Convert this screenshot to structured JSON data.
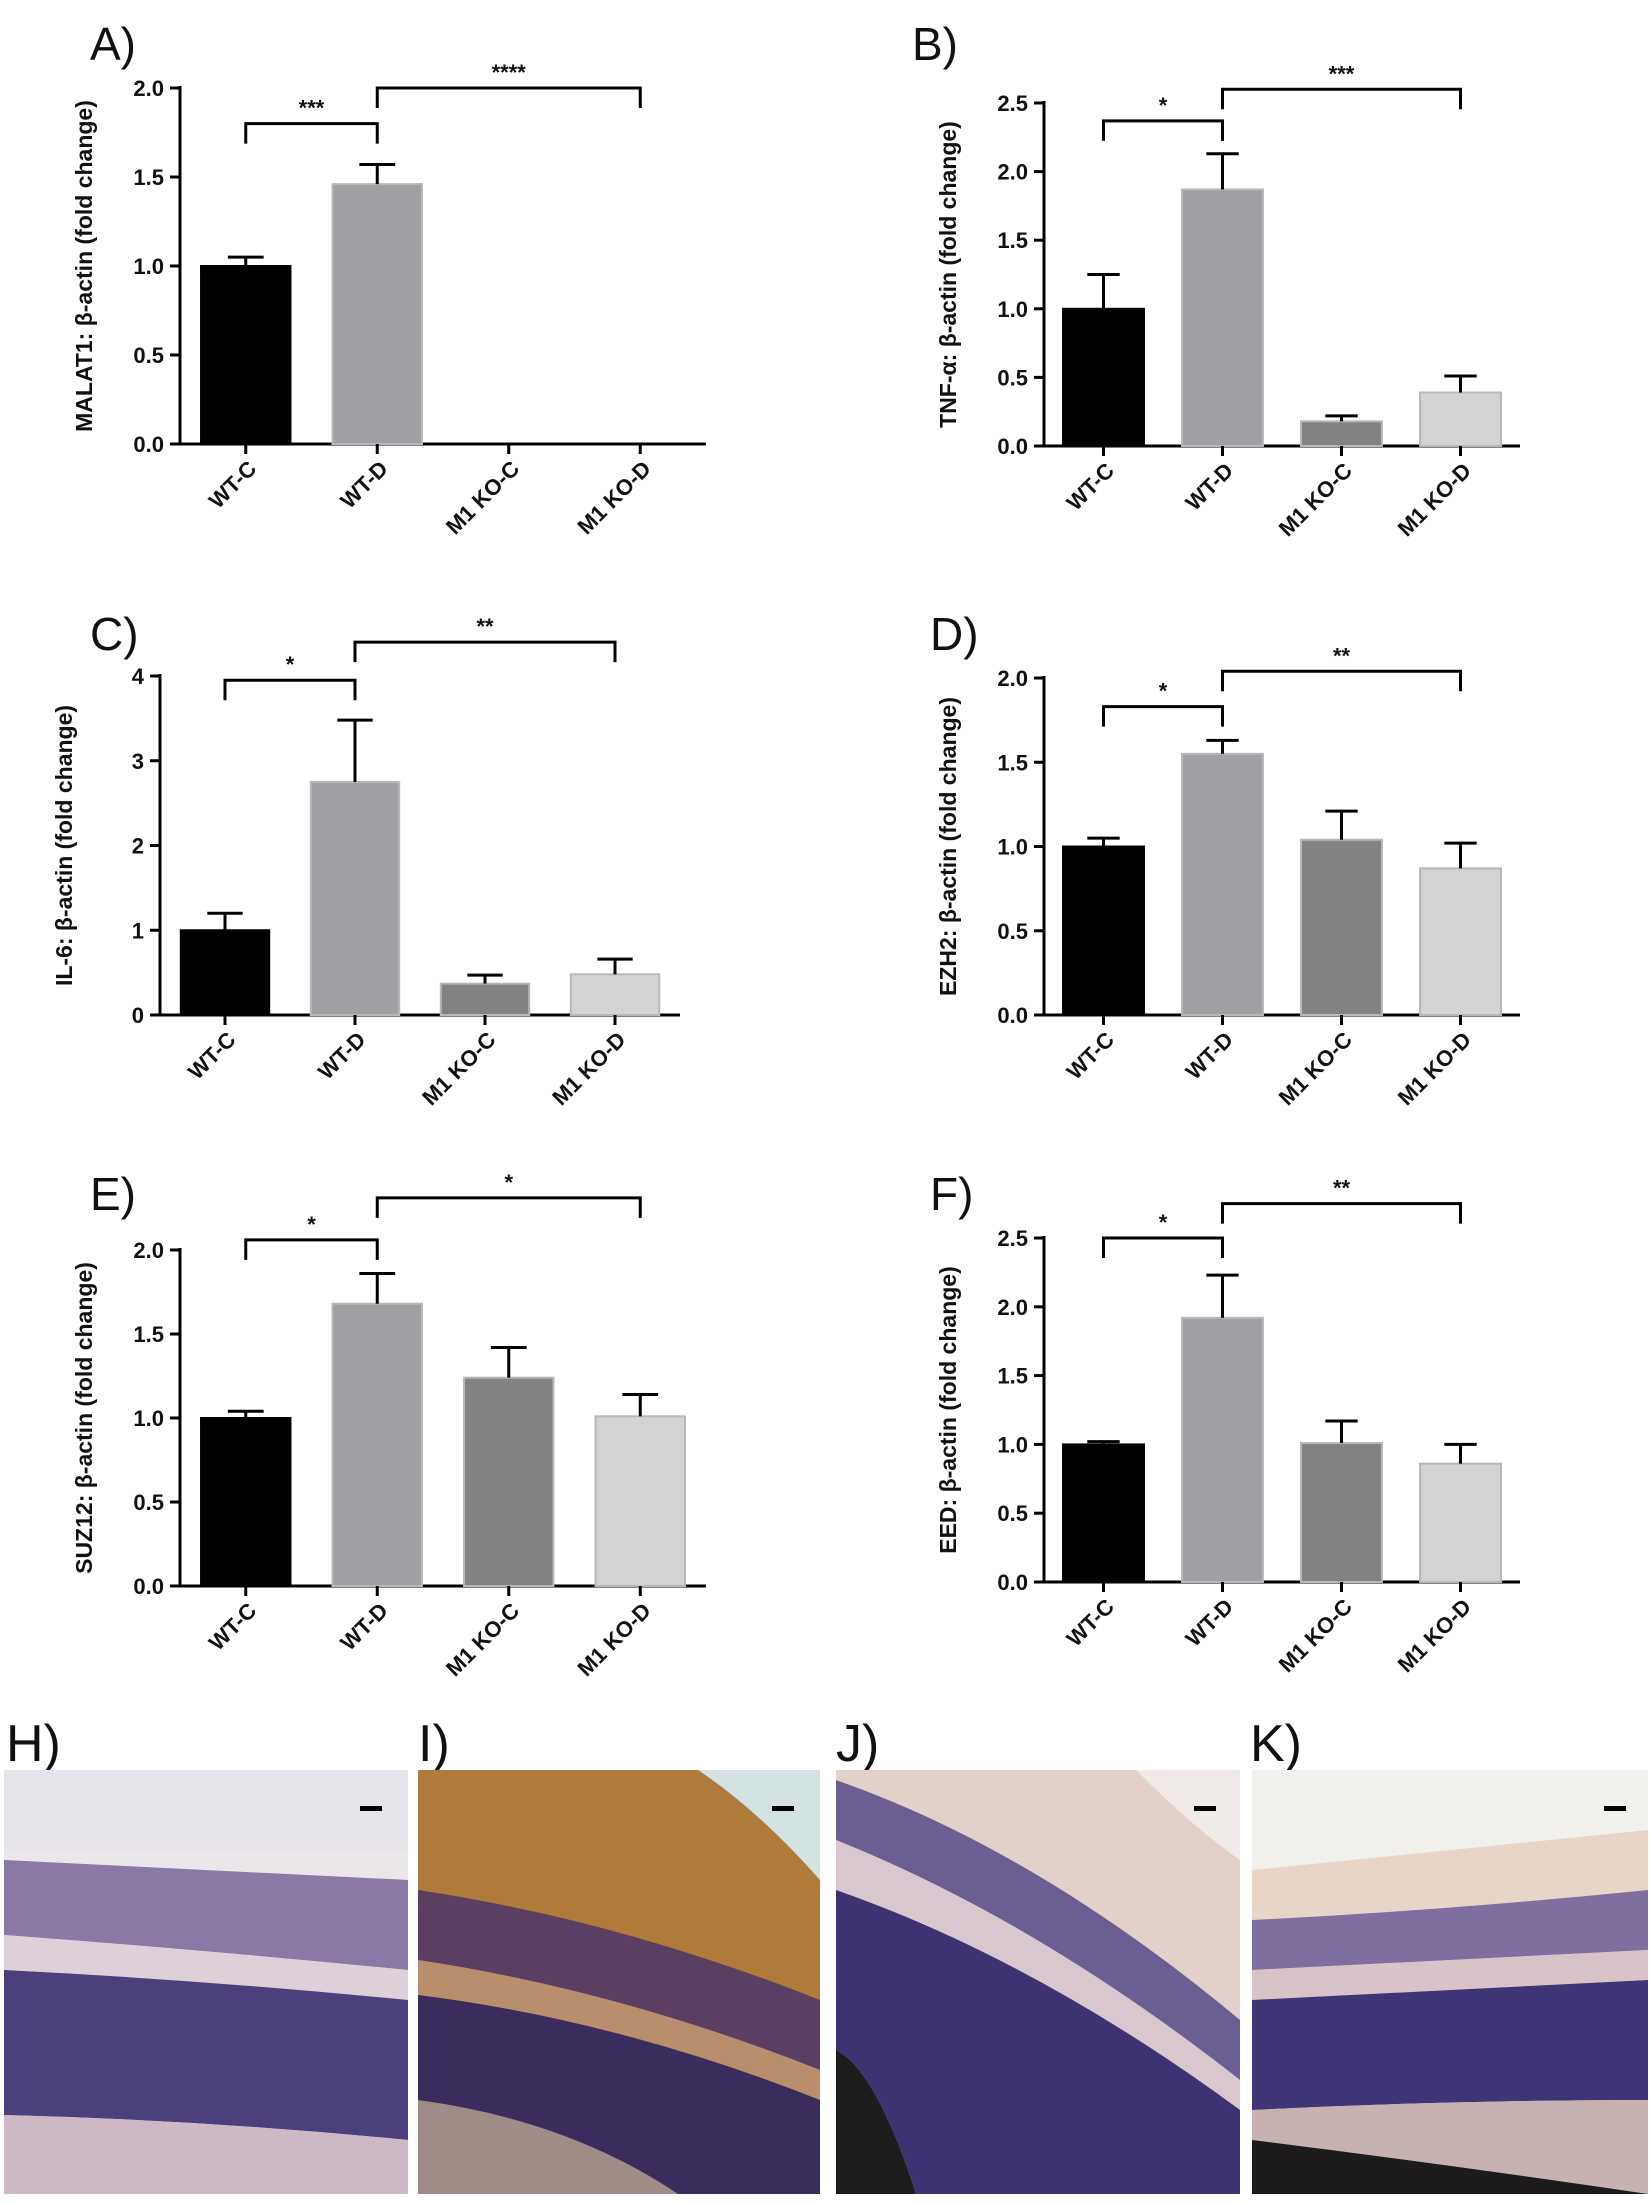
{
  "colors": {
    "WT-C": "#000000",
    "WT-D": "#a0a0a4",
    "M1 KO-C": "#828282",
    "M1 KO-D": "#d3d3d3"
  },
  "chart_data": [
    {
      "type": "bar",
      "panel": "A)",
      "ylabel": "MALAT1: β-actin (fold change)",
      "categories": [
        "WT-C",
        "WT-D",
        "M1 KO-C",
        "M1 KO-D"
      ],
      "values": [
        1.0,
        1.46,
        0.0,
        0.0
      ],
      "errors": [
        0.05,
        0.11,
        0,
        0
      ],
      "ylim": [
        0,
        2.0
      ],
      "yticks": [
        "0.0",
        "0.5",
        "1.0",
        "1.5",
        "2.0"
      ],
      "yticks_values": [
        0,
        0.5,
        1.0,
        1.5,
        2.0
      ],
      "brackets": [
        {
          "from": 0,
          "to": 1,
          "label": "***",
          "level": 1.8
        },
        {
          "from": 1,
          "to": 3,
          "label": "****",
          "level": 2.0
        }
      ]
    },
    {
      "type": "bar",
      "panel": "B)",
      "ylabel": "TNF-α: β-actin (fold change)",
      "categories": [
        "WT-C",
        "WT-D",
        "M1 KO-C",
        "M1 KO-D"
      ],
      "values": [
        1.0,
        1.87,
        0.18,
        0.39
      ],
      "errors": [
        0.25,
        0.26,
        0.04,
        0.12
      ],
      "ylim": [
        0,
        2.5
      ],
      "yticks": [
        "0.0",
        "0.5",
        "1.0",
        "1.5",
        "2.0",
        "2.5"
      ],
      "yticks_values": [
        0,
        0.5,
        1.0,
        1.5,
        2.0,
        2.5
      ],
      "brackets": [
        {
          "from": 0,
          "to": 1,
          "label": "*",
          "level": 2.37
        },
        {
          "from": 1,
          "to": 3,
          "label": "***",
          "level": 2.6
        }
      ]
    },
    {
      "type": "bar",
      "panel": "C)",
      "ylabel": "IL-6: β-actin (fold change)",
      "categories": [
        "WT-C",
        "WT-D",
        "M1 KO-C",
        "M1 KO-D"
      ],
      "values": [
        1.0,
        2.75,
        0.37,
        0.48
      ],
      "errors": [
        0.2,
        0.73,
        0.1,
        0.18
      ],
      "ylim": [
        0,
        4
      ],
      "yticks": [
        "0",
        "1",
        "2",
        "3",
        "4"
      ],
      "yticks_values": [
        0,
        1,
        2,
        3,
        4
      ],
      "brackets": [
        {
          "from": 0,
          "to": 1,
          "label": "*",
          "level": 3.95
        },
        {
          "from": 1,
          "to": 3,
          "label": "**",
          "level": 4.4
        }
      ]
    },
    {
      "type": "bar",
      "panel": "D)",
      "ylabel": "EZH2: β-actin (fold change)",
      "categories": [
        "WT-C",
        "WT-D",
        "M1 KO-C",
        "M1 KO-D"
      ],
      "values": [
        1.0,
        1.55,
        1.04,
        0.87
      ],
      "errors": [
        0.05,
        0.08,
        0.17,
        0.15
      ],
      "ylim": [
        0,
        2.0
      ],
      "yticks": [
        "0.0",
        "0.5",
        "1.0",
        "1.5",
        "2.0"
      ],
      "yticks_values": [
        0,
        0.5,
        1.0,
        1.5,
        2.0
      ],
      "brackets": [
        {
          "from": 0,
          "to": 1,
          "label": "*",
          "level": 1.83
        },
        {
          "from": 1,
          "to": 3,
          "label": "**",
          "level": 2.04
        }
      ]
    },
    {
      "type": "bar",
      "panel": "E)",
      "ylabel": "SUZ12: β-actin (fold change)",
      "categories": [
        "WT-C",
        "WT-D",
        "M1 KO-C",
        "M1 KO-D"
      ],
      "values": [
        1.0,
        1.68,
        1.24,
        1.01
      ],
      "errors": [
        0.04,
        0.18,
        0.18,
        0.13
      ],
      "ylim": [
        0,
        2.0
      ],
      "yticks": [
        "0.0",
        "0.5",
        "1.0",
        "1.5",
        "2.0"
      ],
      "yticks_values": [
        0,
        0.5,
        1.0,
        1.5,
        2.0
      ],
      "brackets": [
        {
          "from": 0,
          "to": 1,
          "label": "*",
          "level": 2.06
        },
        {
          "from": 1,
          "to": 3,
          "label": "*",
          "level": 2.31
        }
      ]
    },
    {
      "type": "bar",
      "panel": "F)",
      "ylabel": "EED: β-actin (fold change)",
      "categories": [
        "WT-C",
        "WT-D",
        "M1 KO-C",
        "M1 KO-D"
      ],
      "values": [
        1.0,
        1.92,
        1.01,
        0.86
      ],
      "errors": [
        0.02,
        0.31,
        0.16,
        0.14
      ],
      "ylim": [
        0,
        2.5
      ],
      "yticks": [
        "0.0",
        "0.5",
        "1.0",
        "1.5",
        "2.0",
        "2.5"
      ],
      "yticks_values": [
        0,
        0.5,
        1.0,
        1.5,
        2.0,
        2.5
      ],
      "brackets": [
        {
          "from": 0,
          "to": 1,
          "label": "*",
          "level": 2.5
        },
        {
          "from": 1,
          "to": 3,
          "label": "**",
          "level": 2.75
        }
      ]
    }
  ],
  "micrographs": [
    {
      "label": "H)",
      "stain": "light"
    },
    {
      "label": "I)",
      "stain": "brown"
    },
    {
      "label": "J)",
      "stain": "light"
    },
    {
      "label": "K)",
      "stain": "light"
    }
  ]
}
